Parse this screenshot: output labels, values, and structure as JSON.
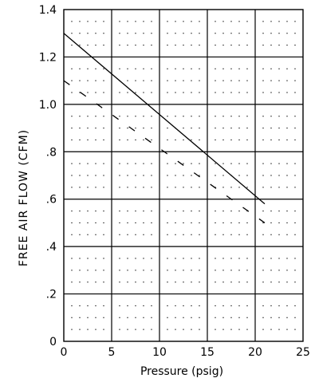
{
  "chart_data": {
    "type": "line",
    "title": "",
    "xlabel": "Pressure (psig)",
    "ylabel": "FREE AIR FLOW (CFM)",
    "xlim": [
      0,
      25
    ],
    "ylim": [
      0,
      1.4
    ],
    "x_ticks": [
      0,
      5,
      10,
      15,
      20,
      25
    ],
    "x_tick_labels": [
      "0",
      "5",
      "10",
      "15",
      "20",
      "25"
    ],
    "y_ticks": [
      0,
      0.2,
      0.4,
      0.6,
      0.8,
      1.0,
      1.2,
      1.4
    ],
    "y_tick_labels": [
      "0",
      ".2",
      ".4",
      ".6",
      ".8",
      "1.0",
      "1.2",
      "1.4"
    ],
    "grid": true,
    "series": [
      {
        "style": "solid",
        "x": [
          0,
          21
        ],
        "y": [
          1.3,
          0.58
        ]
      },
      {
        "style": "dashed",
        "x": [
          0,
          21
        ],
        "y": [
          1.1,
          0.5
        ]
      }
    ]
  }
}
